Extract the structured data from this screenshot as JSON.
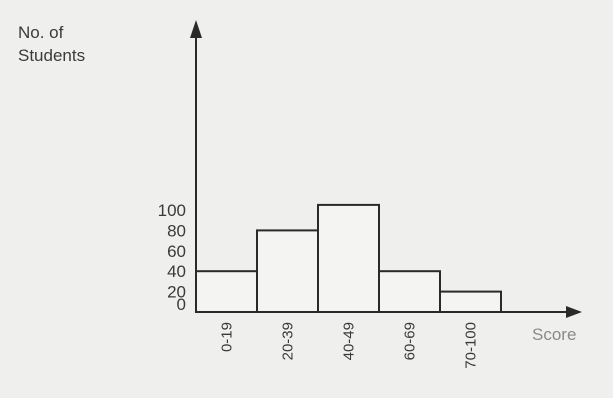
{
  "chart_data": {
    "type": "bar",
    "title": "",
    "ylabel_lines": [
      "No. of",
      "Students"
    ],
    "xlabel": "Score",
    "categories": [
      "0-19",
      "20-39",
      "40-49",
      "60-69",
      "70-100"
    ],
    "values": [
      40,
      80,
      105,
      40,
      20
    ],
    "yticks": [
      "0",
      "20",
      "40",
      "60",
      "80",
      "100"
    ],
    "ylim": [
      0,
      120
    ],
    "grid": false,
    "legend": "none",
    "bar_fill": "#f4f4f2",
    "bar_stroke": "#2a2a2a",
    "axis_color": "#2a2a2a"
  }
}
